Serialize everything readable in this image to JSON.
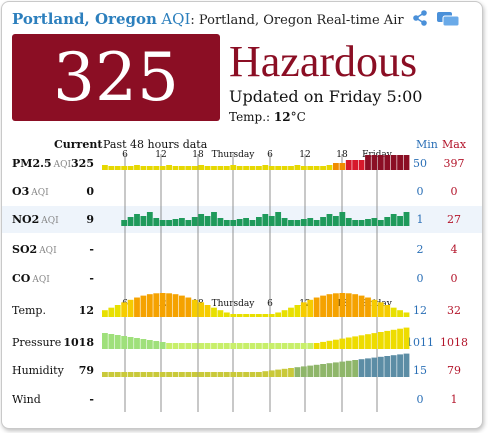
{
  "header": {
    "city": "Portland, Oregon",
    "aqi_label": "AQI",
    "subtitle": ": Portland, Oregon Real-time Air Qu",
    "share_icon": "share-icon",
    "chat_icon": "chat-bubbles-icon"
  },
  "summary": {
    "aqi_value": "325",
    "level": "Hazardous",
    "updated": "Updated on Friday 5:00",
    "temp_label": "Temp.:",
    "temp_value": "12",
    "temp_unit": "°C",
    "level_color": "#8b0e24"
  },
  "table": {
    "current_label": "Current",
    "past_label": "Past 48 hours data",
    "min_label": "Min",
    "max_label": "Max",
    "time_labels": [
      "6",
      "12",
      "18",
      "Thursday",
      "6",
      "12",
      "18",
      "Friday"
    ],
    "rows": [
      {
        "name": "PM2.5",
        "unit": "AQI",
        "current": "325",
        "min": "50",
        "max": "397"
      },
      {
        "name": "O3",
        "unit": "AQI",
        "current": "0",
        "min": "0",
        "max": "0"
      },
      {
        "name": "NO2",
        "unit": "AQI",
        "current": "9",
        "min": "1",
        "max": "27"
      },
      {
        "name": "SO2",
        "unit": "AQI",
        "current": "-",
        "min": "2",
        "max": "4"
      },
      {
        "name": "CO",
        "unit": "AQI",
        "current": "-",
        "min": "0",
        "max": "0"
      },
      {
        "name": "Temp.",
        "unit": "",
        "current": "12",
        "min": "12",
        "max": "32"
      },
      {
        "name": "Pressure",
        "unit": "",
        "current": "1018",
        "min": "1011",
        "max": "1018"
      },
      {
        "name": "Humidity",
        "unit": "",
        "current": "79",
        "min": "15",
        "max": "79"
      },
      {
        "name": "Wind",
        "unit": "",
        "current": "-",
        "min": "0",
        "max": "1"
      }
    ]
  }
}
